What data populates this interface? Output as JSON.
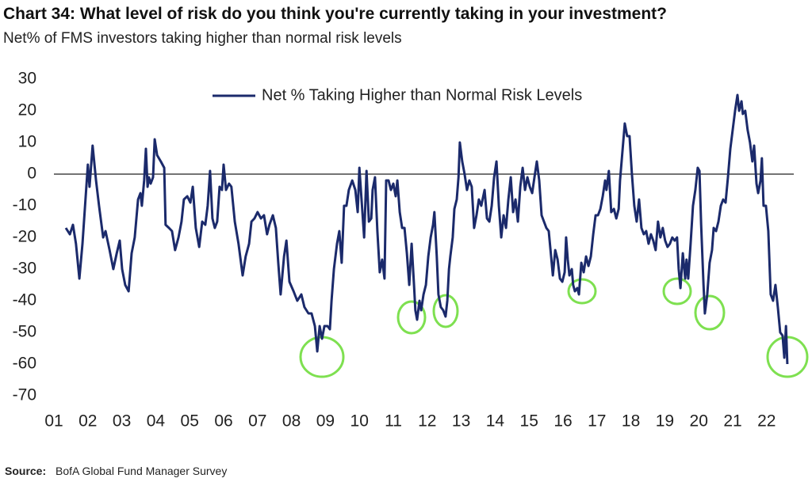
{
  "chart_data": {
    "type": "line",
    "title": "Chart 34: What level of risk do you think you're currently taking in your investment?",
    "subtitle": "Net% of FMS investors taking higher than normal risk levels",
    "source": {
      "label": "Source:",
      "text": "BofA Global Fund Manager Survey"
    },
    "legend": "top",
    "xlim": [
      1,
      22.8
    ],
    "ylim": [
      -70,
      30
    ],
    "yticks": [
      30,
      20,
      10,
      0,
      -10,
      -20,
      -30,
      -40,
      -50,
      -60,
      -70
    ],
    "xticks": [
      {
        "value": 1,
        "label": "01"
      },
      {
        "value": 2,
        "label": "02"
      },
      {
        "value": 3,
        "label": "03"
      },
      {
        "value": 4,
        "label": "04"
      },
      {
        "value": 5,
        "label": "05"
      },
      {
        "value": 6,
        "label": "06"
      },
      {
        "value": 7,
        "label": "07"
      },
      {
        "value": 8,
        "label": "08"
      },
      {
        "value": 9,
        "label": "09"
      },
      10,
      11,
      12,
      13,
      14,
      15,
      16,
      17,
      18,
      19,
      20,
      21,
      22
    ],
    "x": [
      1.35,
      1.47,
      1.56,
      1.65,
      1.75,
      1.84,
      1.93,
      2.0,
      2.05,
      2.14,
      2.24,
      2.33,
      2.45,
      2.52,
      2.64,
      2.75,
      2.85,
      2.94,
      3.01,
      3.1,
      3.2,
      3.29,
      3.38,
      3.48,
      3.55,
      3.59,
      3.66,
      3.71,
      3.76,
      3.8,
      3.85,
      3.92,
      3.97,
      4.04,
      4.15,
      4.25,
      4.29,
      4.39,
      4.48,
      4.57,
      4.67,
      4.76,
      4.83,
      4.93,
      5.02,
      5.09,
      5.18,
      5.28,
      5.37,
      5.46,
      5.53,
      5.6,
      5.67,
      5.74,
      5.81,
      5.88,
      5.95,
      6.0,
      6.07,
      6.16,
      6.23,
      6.33,
      6.44,
      6.56,
      6.65,
      6.75,
      6.82,
      6.91,
      7.0,
      7.1,
      7.19,
      7.28,
      7.35,
      7.45,
      7.54,
      7.61,
      7.68,
      7.78,
      7.85,
      7.94,
      8.06,
      8.17,
      8.29,
      8.38,
      8.5,
      8.59,
      8.69,
      8.76,
      8.83,
      8.9,
      8.97,
      9.06,
      9.13,
      9.18,
      9.25,
      9.34,
      9.41,
      9.48,
      9.55,
      9.62,
      9.69,
      9.79,
      9.88,
      9.95,
      10.0,
      10.07,
      10.14,
      10.21,
      10.28,
      10.35,
      10.39,
      10.46,
      10.53,
      10.6,
      10.67,
      10.74,
      10.79,
      10.86,
      10.93,
      11.0,
      11.07,
      11.12,
      11.19,
      11.26,
      11.33,
      11.4,
      11.47,
      11.54,
      11.61,
      11.65,
      11.7,
      11.77,
      11.82,
      11.89,
      11.96,
      12.03,
      12.1,
      12.17,
      12.21,
      12.28,
      12.33,
      12.4,
      12.47,
      12.54,
      12.59,
      12.64,
      12.68,
      12.75,
      12.8,
      12.87,
      12.92,
      12.96,
      13.03,
      13.1,
      13.17,
      13.24,
      13.31,
      13.38,
      13.45,
      13.52,
      13.59,
      13.69,
      13.76,
      13.83,
      13.9,
      13.97,
      14.04,
      14.11,
      14.18,
      14.25,
      14.32,
      14.39,
      14.46,
      14.53,
      14.6,
      14.67,
      14.74,
      14.81,
      14.88,
      14.95,
      15.02,
      15.09,
      15.16,
      15.23,
      15.3,
      15.37,
      15.44,
      15.51,
      15.58,
      15.65,
      15.7,
      15.77,
      15.84,
      15.91,
      15.98,
      16.05,
      16.09,
      16.14,
      16.19,
      16.26,
      16.3,
      16.35,
      16.42,
      16.47,
      16.54,
      16.61,
      16.68,
      16.75,
      16.82,
      16.89,
      16.96,
      17.03,
      17.1,
      17.17,
      17.24,
      17.28,
      17.35,
      17.42,
      17.5,
      17.57,
      17.64,
      17.68,
      17.75,
      17.82,
      17.89,
      17.96,
      18.03,
      18.1,
      18.17,
      18.24,
      18.31,
      18.38,
      18.45,
      18.52,
      18.59,
      18.66,
      18.73,
      18.8,
      18.87,
      18.94,
      19.01,
      19.08,
      19.15,
      19.22,
      19.29,
      19.36,
      19.41,
      19.46,
      19.53,
      19.6,
      19.64,
      19.69,
      19.76,
      19.83,
      19.9,
      19.97,
      20.02,
      20.07,
      20.14,
      20.18,
      20.25,
      20.32,
      20.39,
      20.44,
      20.51,
      20.58,
      20.65,
      20.72,
      20.79,
      20.86,
      20.93,
      21.0,
      21.07,
      21.14,
      21.19,
      21.26,
      21.3,
      21.37,
      21.44,
      21.51,
      21.58,
      21.63,
      21.7,
      21.75,
      21.82,
      21.86,
      21.91,
      21.98,
      22.05,
      22.12,
      22.19,
      22.26,
      22.33,
      22.4,
      22.47,
      22.52,
      22.57,
      22.61
    ],
    "series": [
      {
        "name": "Net % Taking Higher than Normal Risk Levels",
        "color": "#1b2a6b",
        "values": [
          -17,
          -19,
          -16,
          -22,
          -33,
          -22,
          -8,
          3,
          -4,
          9,
          -2,
          -10,
          -20,
          -18,
          -24,
          -30,
          -25,
          -21,
          -30,
          -35,
          -37,
          -25,
          -20,
          -8,
          -6,
          -10,
          -2,
          8,
          -4,
          -1,
          -3,
          -1,
          11,
          6,
          4,
          2,
          -16,
          -17,
          -18,
          -24,
          -20,
          -15,
          -8,
          -7,
          -9,
          -4,
          -17,
          -23,
          -15,
          -16,
          -10,
          1,
          -14,
          -17,
          -15,
          -4,
          -5,
          3,
          -5,
          -3,
          -4,
          -15,
          -22,
          -32,
          -26,
          -22,
          -15,
          -14,
          -12,
          -14,
          -13,
          -19,
          -16,
          -13,
          -17,
          -28,
          -38,
          -26,
          -21,
          -34,
          -37,
          -40,
          -38,
          -42,
          -44,
          -44,
          -48,
          -56,
          -48,
          -52,
          -48,
          -48,
          -49,
          -40,
          -30,
          -22,
          -18,
          -28,
          -10,
          -10,
          -5,
          -2,
          -5,
          -12,
          2,
          -9,
          -20,
          1,
          -15,
          -14,
          -5,
          -1,
          -18,
          -31,
          -27,
          -33,
          -2,
          -2,
          -5,
          -3,
          -7,
          -2,
          -12,
          -17,
          -17,
          -25,
          -35,
          -22,
          -35,
          -43,
          -46,
          -40,
          -43,
          -38,
          -35,
          -26,
          -20,
          -16,
          -12,
          -26,
          -38,
          -42,
          -43,
          -45,
          -40,
          -30,
          -26,
          -20,
          -11,
          -8,
          -1,
          10,
          4,
          0,
          -5,
          -2,
          -4,
          -17,
          -13,
          -8,
          -10,
          -5,
          -14,
          -15,
          -10,
          -1,
          4,
          -10,
          -20,
          -13,
          -17,
          -8,
          -1,
          -12,
          -8,
          -15,
          -4,
          2,
          -5,
          -1,
          -4,
          -6,
          -1,
          4,
          -2,
          -13,
          -15,
          -17,
          -18,
          -26,
          -32,
          -24,
          -27,
          -33,
          -34,
          -31,
          -20,
          -27,
          -32,
          -30,
          -35,
          -37,
          -36,
          -38,
          -28,
          -31,
          -26,
          -29,
          -26,
          -19,
          -13,
          -13,
          -11,
          -7,
          -2,
          -5,
          1,
          -12,
          -11,
          -14,
          -11,
          -2,
          7,
          16,
          12,
          12,
          0,
          -10,
          -15,
          -8,
          -17,
          -19,
          -18,
          -22,
          -19,
          -21,
          -24,
          -15,
          -20,
          -17,
          -21,
          -23,
          -22,
          -20,
          -21,
          -20,
          -30,
          -36,
          -25,
          -33,
          -27,
          -33,
          -22,
          -10,
          -5,
          2,
          1,
          -16,
          -35,
          -44,
          -38,
          -28,
          -24,
          -17,
          -18,
          -15,
          -10,
          -8,
          -9,
          -1,
          8,
          14,
          20,
          25,
          20,
          23,
          19,
          20,
          14,
          10,
          4,
          9,
          -3,
          -6,
          -2,
          5,
          -10,
          -10,
          -18,
          -38,
          -40,
          -35,
          -42,
          -50,
          -51,
          -58,
          -48,
          -60
        ]
      }
    ]
  }
}
